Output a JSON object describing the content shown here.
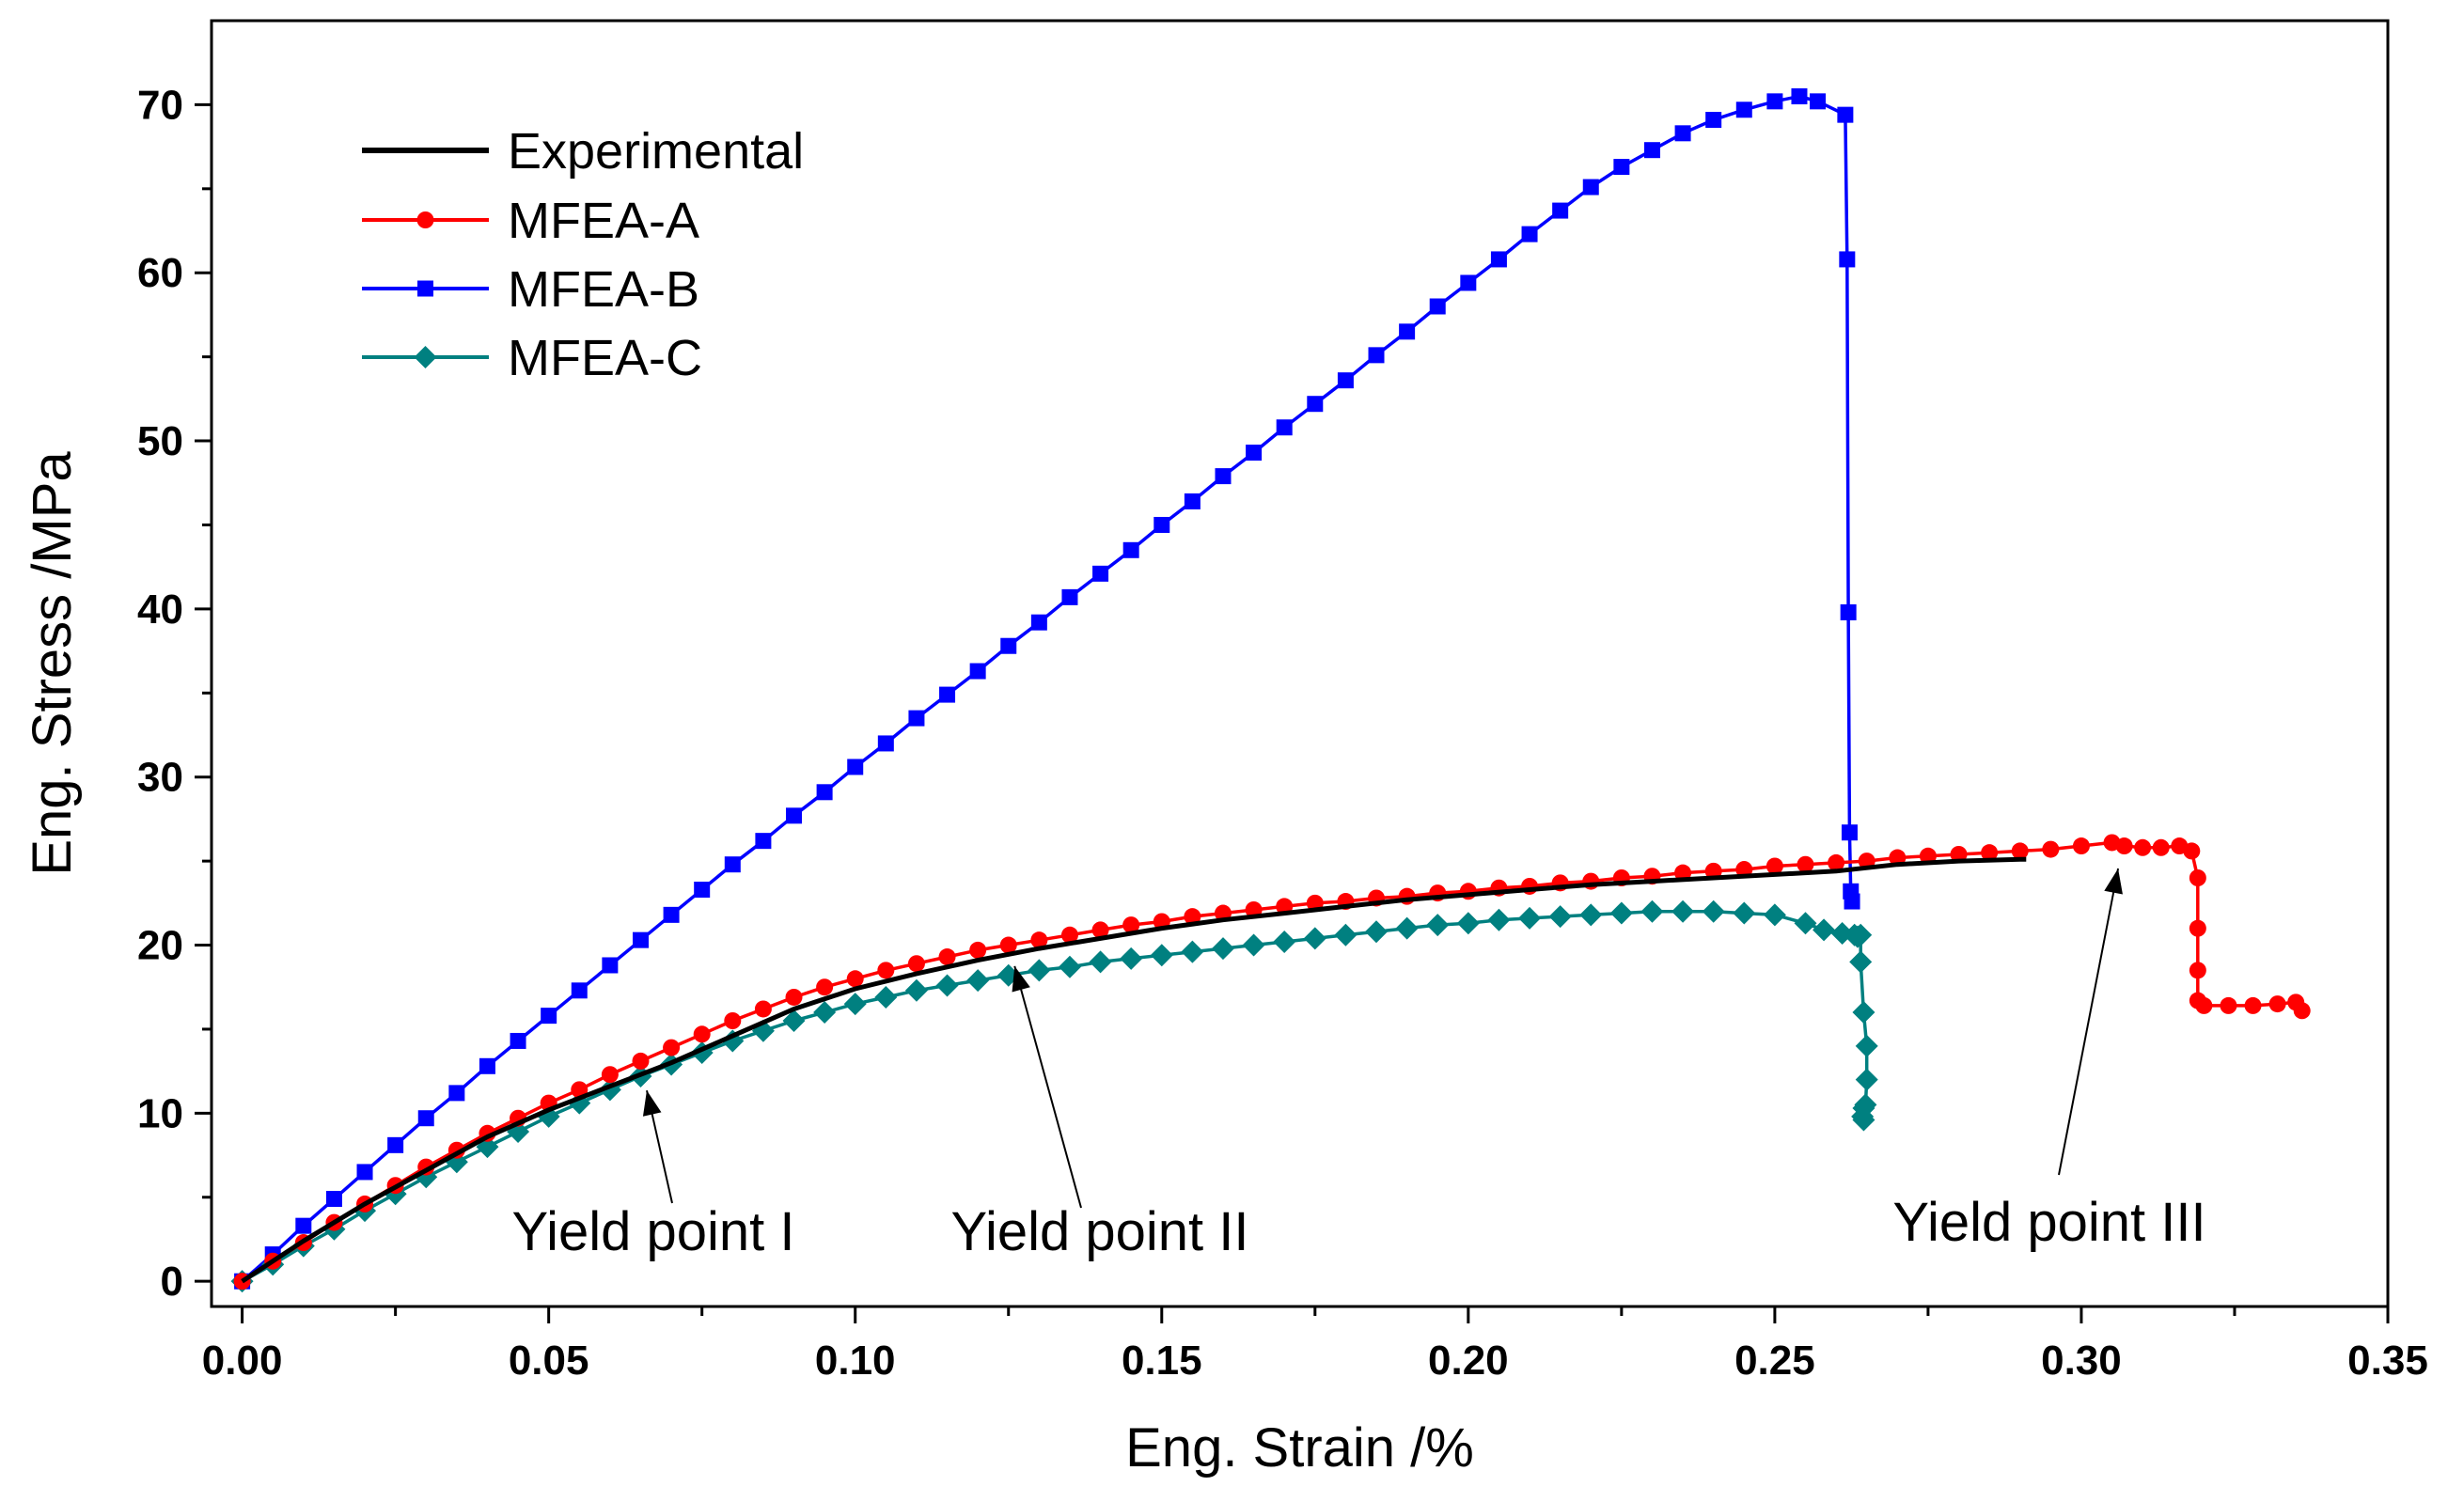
{
  "chart_data": {
    "type": "line",
    "title": "",
    "xlabel": "Eng. Strain /%",
    "ylabel": "Eng. Stress /MPa",
    "xlim": [
      -0.005,
      0.35
    ],
    "ylim": [
      -1.5,
      75
    ],
    "xticks": [
      "0.00",
      "0.05",
      "0.10",
      "0.15",
      "0.20",
      "0.25",
      "0.30",
      "0.35"
    ],
    "yticks": [
      "0",
      "10",
      "20",
      "30",
      "40",
      "50",
      "60",
      "70"
    ],
    "grid": false,
    "legend_position": "top-left",
    "series": [
      {
        "name": "Experimental",
        "color": "#000000",
        "marker": "none",
        "x": [
          0,
          0.01,
          0.02,
          0.03,
          0.04,
          0.05,
          0.06,
          0.07,
          0.08,
          0.09,
          0.1,
          0.11,
          0.12,
          0.13,
          0.14,
          0.15,
          0.16,
          0.17,
          0.18,
          0.19,
          0.2,
          0.21,
          0.22,
          0.23,
          0.24,
          0.25,
          0.26,
          0.27,
          0.28,
          0.29,
          0.291
        ],
        "y": [
          0,
          2.4,
          4.6,
          6.6,
          8.6,
          10.2,
          11.6,
          13.0,
          14.6,
          16.2,
          17.4,
          18.3,
          19.1,
          19.8,
          20.4,
          21.0,
          21.5,
          21.9,
          22.3,
          22.7,
          23.0,
          23.3,
          23.6,
          23.8,
          24.0,
          24.2,
          24.4,
          24.8,
          25.0,
          25.1,
          25.1
        ]
      },
      {
        "name": "MFEA-A",
        "color": "#ff0000",
        "marker": "circle",
        "x": [
          0,
          0.005,
          0.01,
          0.015,
          0.02,
          0.025,
          0.03,
          0.035,
          0.04,
          0.045,
          0.05,
          0.055,
          0.06,
          0.065,
          0.07,
          0.075,
          0.08,
          0.085,
          0.09,
          0.095,
          0.1,
          0.105,
          0.11,
          0.115,
          0.12,
          0.125,
          0.13,
          0.135,
          0.14,
          0.145,
          0.15,
          0.155,
          0.16,
          0.165,
          0.17,
          0.175,
          0.18,
          0.185,
          0.19,
          0.195,
          0.2,
          0.205,
          0.21,
          0.215,
          0.22,
          0.225,
          0.23,
          0.235,
          0.24,
          0.245,
          0.25,
          0.255,
          0.26,
          0.265,
          0.27,
          0.275,
          0.28,
          0.285,
          0.29,
          0.295,
          0.3,
          0.305,
          0.307,
          0.31,
          0.313,
          0.316,
          0.318,
          0.319,
          0.319,
          0.319,
          0.319,
          0.32,
          0.324,
          0.328,
          0.332,
          0.335,
          0.336
        ],
        "y": [
          0,
          1.2,
          2.3,
          3.5,
          4.6,
          5.7,
          6.8,
          7.8,
          8.8,
          9.7,
          10.6,
          11.4,
          12.3,
          13.1,
          13.9,
          14.7,
          15.5,
          16.2,
          16.9,
          17.5,
          18.0,
          18.5,
          18.9,
          19.3,
          19.7,
          20.0,
          20.3,
          20.6,
          20.9,
          21.2,
          21.4,
          21.7,
          21.9,
          22.1,
          22.3,
          22.5,
          22.6,
          22.8,
          22.9,
          23.1,
          23.2,
          23.4,
          23.5,
          23.7,
          23.8,
          24.0,
          24.1,
          24.3,
          24.4,
          24.5,
          24.7,
          24.8,
          24.9,
          25.0,
          25.2,
          25.3,
          25.4,
          25.5,
          25.6,
          25.7,
          25.9,
          26.1,
          25.9,
          25.8,
          25.8,
          25.9,
          25.6,
          24.0,
          21.0,
          18.5,
          16.7,
          16.4,
          16.4,
          16.4,
          16.5,
          16.6,
          16.1
        ]
      },
      {
        "name": "MFEA-B",
        "color": "#0000ff",
        "marker": "square",
        "x": [
          0,
          0.005,
          0.01,
          0.015,
          0.02,
          0.025,
          0.03,
          0.035,
          0.04,
          0.045,
          0.05,
          0.055,
          0.06,
          0.065,
          0.07,
          0.075,
          0.08,
          0.085,
          0.09,
          0.095,
          0.1,
          0.105,
          0.11,
          0.115,
          0.12,
          0.125,
          0.13,
          0.135,
          0.14,
          0.145,
          0.15,
          0.155,
          0.16,
          0.165,
          0.17,
          0.175,
          0.18,
          0.185,
          0.19,
          0.195,
          0.2,
          0.205,
          0.21,
          0.215,
          0.22,
          0.225,
          0.23,
          0.235,
          0.24,
          0.245,
          0.25,
          0.254,
          0.257,
          0.2615,
          0.2618,
          0.262,
          0.2622,
          0.2624,
          0.2626
        ],
        "y": [
          0,
          1.6,
          3.3,
          4.9,
          6.5,
          8.1,
          9.7,
          11.2,
          12.8,
          14.3,
          15.8,
          17.3,
          18.8,
          20.3,
          21.8,
          23.3,
          24.8,
          26.2,
          27.7,
          29.1,
          30.6,
          32.0,
          33.5,
          34.9,
          36.3,
          37.8,
          39.2,
          40.7,
          42.1,
          43.5,
          45.0,
          46.4,
          47.9,
          49.3,
          50.8,
          52.2,
          53.6,
          55.1,
          56.5,
          58.0,
          59.4,
          60.8,
          62.3,
          63.7,
          65.1,
          66.3,
          67.3,
          68.3,
          69.1,
          69.7,
          70.2,
          70.5,
          70.2,
          69.4,
          60.8,
          39.8,
          26.7,
          23.2,
          22.6
        ]
      },
      {
        "name": "MFEA-C",
        "color": "#008080",
        "marker": "diamond",
        "x": [
          0,
          0.005,
          0.01,
          0.015,
          0.02,
          0.025,
          0.03,
          0.035,
          0.04,
          0.045,
          0.05,
          0.055,
          0.06,
          0.065,
          0.07,
          0.075,
          0.08,
          0.085,
          0.09,
          0.095,
          0.1,
          0.105,
          0.11,
          0.115,
          0.12,
          0.125,
          0.13,
          0.135,
          0.14,
          0.145,
          0.15,
          0.155,
          0.16,
          0.165,
          0.17,
          0.175,
          0.18,
          0.185,
          0.19,
          0.195,
          0.2,
          0.205,
          0.21,
          0.215,
          0.22,
          0.225,
          0.23,
          0.235,
          0.24,
          0.245,
          0.25,
          0.255,
          0.258,
          0.261,
          0.263,
          0.2635,
          0.264,
          0.264,
          0.2645,
          0.265,
          0.265,
          0.2648,
          0.2645,
          0.2643,
          0.2645
        ],
        "y": [
          0,
          1.0,
          2.1,
          3.1,
          4.2,
          5.2,
          6.2,
          7.1,
          8.0,
          8.9,
          9.8,
          10.6,
          11.4,
          12.2,
          12.9,
          13.6,
          14.3,
          14.9,
          15.5,
          16.0,
          16.5,
          16.9,
          17.3,
          17.6,
          17.9,
          18.2,
          18.5,
          18.7,
          19.0,
          19.2,
          19.4,
          19.6,
          19.8,
          20.0,
          20.2,
          20.4,
          20.6,
          20.8,
          21.0,
          21.2,
          21.3,
          21.5,
          21.6,
          21.7,
          21.8,
          21.9,
          22.0,
          22.0,
          22.0,
          21.9,
          21.8,
          21.3,
          20.9,
          20.7,
          20.6,
          20.5,
          20.6,
          19.0,
          16.0,
          14.0,
          12.0,
          10.5,
          9.6,
          9.8,
          10.3
        ]
      }
    ],
    "annotations": [
      {
        "text": "Yield point I",
        "target_x": 0.066,
        "target_y": 11.8
      },
      {
        "text": "Yield point II",
        "target_x": 0.126,
        "target_y": 19.2
      },
      {
        "text": "Yield point III",
        "target_x": 0.306,
        "target_y": 25.0
      }
    ]
  }
}
